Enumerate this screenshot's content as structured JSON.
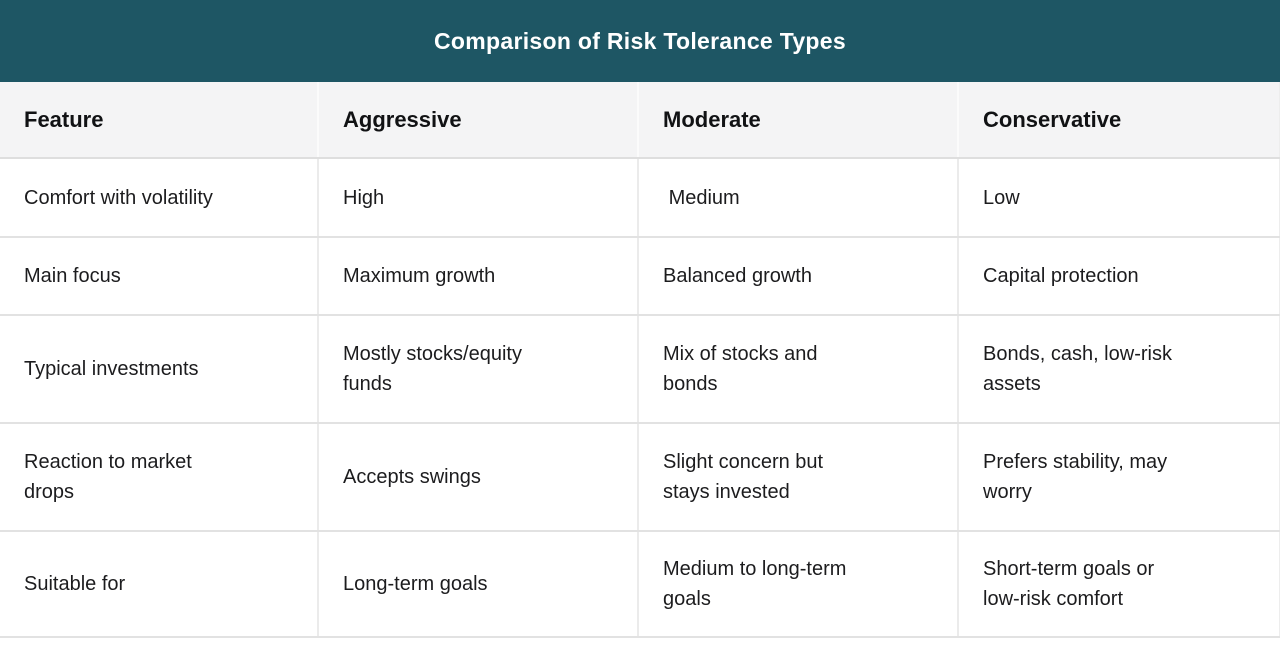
{
  "title": "Comparison of Risk Tolerance Types",
  "colors": {
    "banner_teal": "#1E5664",
    "header_row_bg": "#F4F4F5",
    "row_border": "#E2E2E2",
    "column_divider": "#EBEBEB",
    "title_text": "#FFFFFF",
    "body_text": "#1C1C1E"
  },
  "table": {
    "headers": {
      "feature": "Feature",
      "aggressive": "Aggressive",
      "moderate": "Moderate",
      "conservative": "Conservative"
    },
    "rows": [
      {
        "feature": "Comfort with volatility",
        "aggressive": "High",
        "moderate": " Medium",
        "conservative": "Low"
      },
      {
        "feature": "Main focus",
        "aggressive": "Maximum growth",
        "moderate": "Balanced growth",
        "conservative": "Capital protection"
      },
      {
        "feature": "Typical investments",
        "aggressive": "Mostly stocks/equity\nfunds",
        "moderate": "Mix of stocks and\nbonds",
        "conservative": "Bonds, cash, low-risk\nassets"
      },
      {
        "feature": "Reaction to market\ndrops",
        "aggressive": "Accepts swings",
        "moderate": "Slight concern but\nstays invested",
        "conservative": "Prefers stability, may\nworry"
      },
      {
        "feature": "Suitable for",
        "aggressive": "Long-term goals",
        "moderate": "Medium to long-term\ngoals",
        "conservative": "Short-term goals or\nlow-risk comfort"
      }
    ]
  }
}
